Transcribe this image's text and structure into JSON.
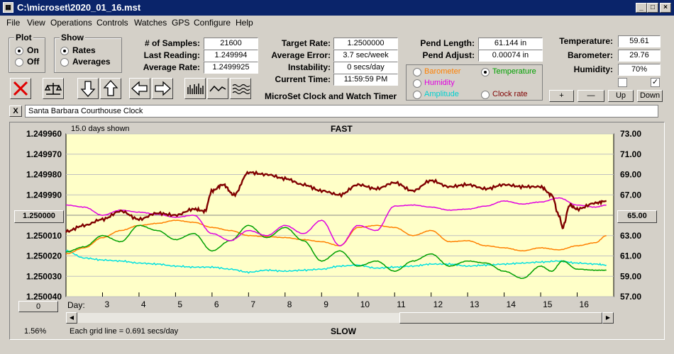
{
  "window": {
    "title": "C:\\microset\\2020_01_16.mst",
    "app_icon": "calculator-icon"
  },
  "menu": [
    "File",
    "View",
    "Operations",
    "Controls",
    "Watches",
    "GPS",
    "Configure",
    "Help"
  ],
  "plot_group": {
    "title": "Plot",
    "on": "On",
    "off": "Off",
    "selected": "On"
  },
  "show_group": {
    "title": "Show",
    "rates": "Rates",
    "averages": "Averages",
    "selected": "Rates"
  },
  "stats": {
    "samples_label": "# of Samples:",
    "samples": "21600",
    "last_label": "Last Reading:",
    "last": "1.249994",
    "avg_label": "Average Rate:",
    "avg": "1.2499925",
    "target_label": "Target Rate:",
    "target": "1.2500000",
    "avgerr_label": "Average Error:",
    "avgerr": "3.7 sec/week",
    "instab_label": "Instability:",
    "instab": "0 secs/day",
    "time_label": "Current Time:",
    "time": "11:59:59 PM",
    "pendlen_label": "Pend Length:",
    "pendlen": "61.144 in",
    "pendadj_label": "Pend Adjust:",
    "pendadj": "0.00074 in",
    "temp_label": "Temperature:",
    "temp": "59.61",
    "baro_label": "Barometer:",
    "baro": "29.76",
    "hum_label": "Humidity:",
    "hum": "70%"
  },
  "app_caption": "MicroSet Clock and Watch Timer",
  "series_select": {
    "barometer": "Barometer",
    "temperature": "Temperature",
    "humidity": "Humidity",
    "amplitude": "Amplitude",
    "clock_rate": "Clock rate",
    "selected": "Temperature"
  },
  "buttons": {
    "plus": "+",
    "minus": "—",
    "up": "Up",
    "down": "Down",
    "close": "X"
  },
  "clock_name": "Santa Barbara Courthouse Clock",
  "plot": {
    "days_shown": "15.0 days shown",
    "top_label": "FAST",
    "bottom_label": "SLOW",
    "left_center_btn": "1.250000",
    "right_center_btn": "65.00",
    "zero_btn": "0",
    "day_label": "Day:",
    "percent": "1.56%",
    "grid_note": "Each grid line = 0.691 secs/day"
  },
  "chart_data": {
    "type": "line",
    "left_axis": {
      "ticks": [
        "1.249960",
        "1.249970",
        "1.249980",
        "1.249990",
        "1.250000",
        "1.250010",
        "1.250020",
        "1.250030",
        "1.250040"
      ],
      "ylim": [
        1.25004,
        1.24996
      ]
    },
    "right_axis": {
      "ticks": [
        "73.00",
        "71.00",
        "69.00",
        "67.00",
        "65.00",
        "63.00",
        "61.00",
        "59.00",
        "57.00"
      ],
      "ylim": [
        57,
        73
      ]
    },
    "x_ticks": [
      "3",
      "4",
      "5",
      "6",
      "7",
      "8",
      "9",
      "10",
      "11",
      "12",
      "13",
      "14",
      "15",
      "16"
    ],
    "xlim": [
      2,
      17
    ],
    "colors": {
      "clock_rate": "#800000",
      "humidity": "#e000e0",
      "temperature": "#00a000",
      "barometer": "#ff8000",
      "amplitude": "#00e0e0",
      "plot_bg": "#ffffc8"
    },
    "series": [
      {
        "key": "clock_rate",
        "x": [
          2.0,
          2.5,
          3.0,
          3.5,
          4.0,
          4.5,
          5.0,
          5.5,
          5.8,
          6.0,
          6.3,
          6.6,
          7.0,
          7.5,
          8.0,
          8.5,
          9.0,
          9.5,
          10.0,
          10.5,
          11.0,
          11.5,
          12.0,
          12.5,
          13.0,
          13.5,
          14.0,
          14.5,
          15.0,
          15.3,
          15.5,
          15.6,
          15.8,
          16.0,
          16.5,
          16.8
        ],
        "y": [
          1.250008,
          1.250005,
          1.250002,
          1.249998,
          1.250002,
          1.249999,
          1.25,
          1.249997,
          1.249998,
          1.249988,
          1.249985,
          1.24999,
          1.249979,
          1.24998,
          1.249982,
          1.249985,
          1.249988,
          1.24999,
          1.249985,
          1.249987,
          1.249984,
          1.249988,
          1.249983,
          1.249986,
          1.249985,
          1.249987,
          1.249985,
          1.249986,
          1.249986,
          1.24999,
          1.25,
          1.250006,
          1.249995,
          1.249997,
          1.249994,
          1.249993
        ]
      },
      {
        "key": "humidity",
        "x": [
          2.0,
          2.5,
          3.0,
          3.5,
          4.0,
          4.5,
          5.0,
          5.5,
          6.0,
          6.5,
          7.0,
          7.5,
          8.0,
          8.5,
          9.0,
          9.5,
          10.0,
          10.5,
          11.0,
          11.5,
          12.0,
          12.5,
          13.0,
          13.5,
          14.0,
          14.5,
          15.0,
          15.5,
          16.0,
          16.5,
          16.8
        ],
        "y": [
          66.0,
          65.8,
          65.0,
          65.5,
          65.3,
          65.1,
          64.8,
          65.0,
          63.2,
          62.5,
          63.5,
          63.0,
          64.0,
          63.2,
          64.5,
          62.0,
          64.0,
          63.5,
          65.9,
          66.0,
          65.8,
          65.5,
          65.6,
          65.9,
          66.4,
          66.1,
          66.3,
          66.7,
          66.0,
          65.8,
          66.0
        ]
      },
      {
        "key": "temperature",
        "x": [
          2.0,
          2.5,
          3.0,
          3.5,
          4.0,
          4.5,
          5.0,
          5.5,
          6.0,
          6.5,
          7.0,
          7.5,
          8.0,
          8.5,
          9.0,
          9.5,
          10.0,
          10.5,
          11.0,
          11.5,
          12.0,
          12.5,
          13.0,
          13.5,
          14.0,
          14.5,
          15.0,
          15.3,
          15.6,
          16.0,
          16.5,
          16.8
        ],
        "y": [
          61.4,
          61.9,
          63.0,
          62.4,
          64.0,
          63.5,
          62.6,
          63.2,
          61.5,
          62.5,
          64.0,
          62.8,
          63.8,
          62.5,
          60.5,
          61.5,
          60.0,
          60.5,
          59.5,
          60.5,
          61.2,
          60.0,
          60.5,
          60.3,
          59.5,
          58.8,
          60.0,
          59.5,
          60.5,
          59.7,
          59.6,
          59.6
        ]
      },
      {
        "key": "barometer",
        "x": [
          2.0,
          2.5,
          3.0,
          3.5,
          4.0,
          4.5,
          5.0,
          5.5,
          6.0,
          6.5,
          7.0,
          7.5,
          8.0,
          8.5,
          9.0,
          9.5,
          10.0,
          10.5,
          11.0,
          11.5,
          12.0,
          12.5,
          13.0,
          13.5,
          14.0,
          14.5,
          15.0,
          15.5,
          16.0,
          16.5,
          16.8
        ],
        "y": [
          61.2,
          61.8,
          62.8,
          63.5,
          64.0,
          64.2,
          64.5,
          64.3,
          63.8,
          63.5,
          63.0,
          62.9,
          62.8,
          62.6,
          62.4,
          62.0,
          63.8,
          64.0,
          63.8,
          63.0,
          63.5,
          62.4,
          62.5,
          62.0,
          61.8,
          61.5,
          61.8,
          61.6,
          62.0,
          62.3,
          63.0
        ]
      },
      {
        "key": "amplitude",
        "x": [
          2.0,
          2.5,
          3.0,
          3.5,
          4.0,
          4.5,
          5.0,
          5.5,
          6.0,
          6.5,
          7.0,
          7.5,
          8.0,
          8.5,
          9.0,
          9.5,
          10.0,
          10.5,
          11.0,
          11.5,
          12.0,
          12.5,
          13.0,
          13.5,
          14.0,
          14.5,
          15.0,
          15.5,
          16.0,
          16.5,
          16.8
        ],
        "y": [
          61.5,
          60.8,
          60.6,
          60.5,
          60.3,
          60.2,
          60.0,
          59.9,
          59.9,
          59.7,
          59.4,
          59.6,
          59.5,
          59.6,
          59.7,
          60.0,
          60.1,
          59.8,
          59.9,
          60.0,
          60.2,
          60.2,
          60.0,
          60.1,
          60.2,
          60.3,
          60.4,
          60.5,
          60.3,
          60.2,
          60.1
        ]
      }
    ]
  }
}
